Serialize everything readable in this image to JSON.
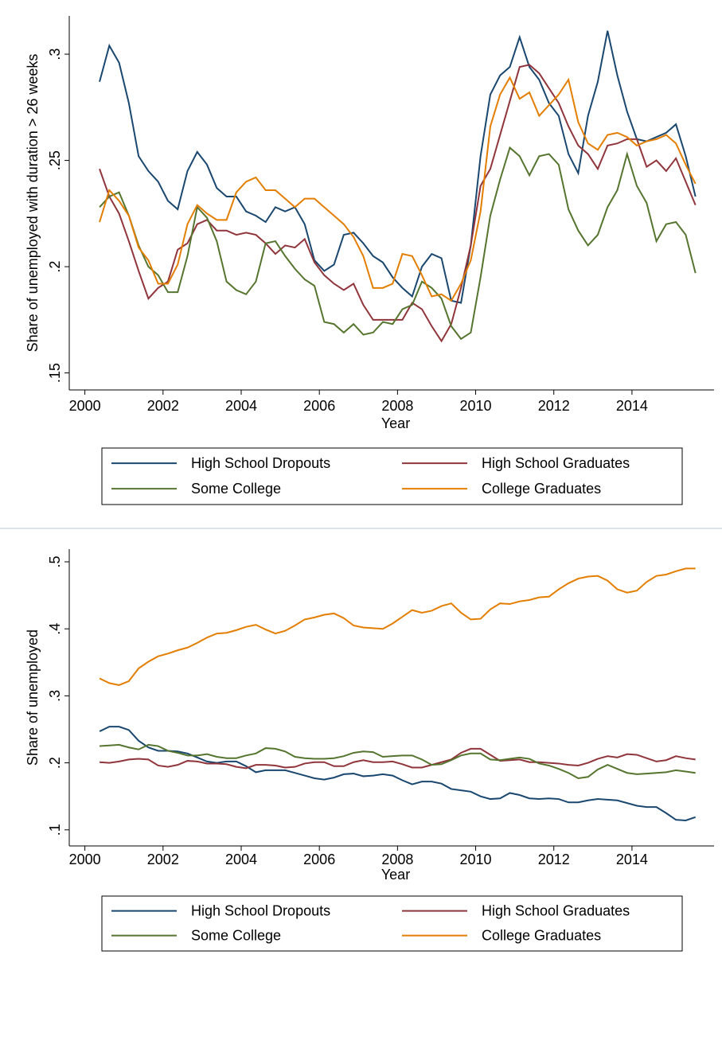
{
  "chart_data": [
    {
      "type": "line",
      "y_label": "Share of unemployed with duration > 26 weeks",
      "x_label": "Year",
      "xlim": [
        1999.6,
        2016.1
      ],
      "xticks": [
        2000,
        2002,
        2004,
        2006,
        2008,
        2010,
        2012,
        2014
      ],
      "ylim": [
        0.142,
        0.318
      ],
      "yticks": [
        {
          "value": 0.15,
          "label": ".15"
        },
        {
          "value": 0.2,
          "label": ".2"
        },
        {
          "value": 0.25,
          "label": ".25"
        },
        {
          "value": 0.3,
          "label": ".3"
        }
      ],
      "grid": false,
      "x": [
        2000.375,
        2000.625,
        2000.875,
        2001.125,
        2001.375,
        2001.625,
        2001.875,
        2002.125,
        2002.375,
        2002.625,
        2002.875,
        2003.125,
        2003.375,
        2003.625,
        2003.875,
        2004.125,
        2004.375,
        2004.625,
        2004.875,
        2005.125,
        2005.375,
        2005.625,
        2005.875,
        2006.125,
        2006.375,
        2006.625,
        2006.875,
        2007.125,
        2007.375,
        2007.625,
        2007.875,
        2008.125,
        2008.375,
        2008.625,
        2008.875,
        2009.125,
        2009.375,
        2009.625,
        2009.875,
        2010.125,
        2010.375,
        2010.625,
        2010.875,
        2011.125,
        2011.375,
        2011.625,
        2011.875,
        2012.125,
        2012.375,
        2012.625,
        2012.875,
        2013.125,
        2013.375,
        2013.625,
        2013.875,
        2014.125,
        2014.375,
        2014.625,
        2014.875,
        2015.125,
        2015.375,
        2015.625
      ],
      "series": [
        {
          "name": "High School Dropouts",
          "color": "#1a476f",
          "values": [
            0.287,
            0.304,
            0.296,
            0.277,
            0.252,
            0.245,
            0.24,
            0.231,
            0.227,
            0.245,
            0.254,
            0.248,
            0.237,
            0.233,
            0.233,
            0.226,
            0.224,
            0.221,
            0.228,
            0.226,
            0.228,
            0.22,
            0.203,
            0.198,
            0.201,
            0.215,
            0.216,
            0.211,
            0.205,
            0.202,
            0.195,
            0.19,
            0.186,
            0.2,
            0.206,
            0.204,
            0.184,
            0.183,
            0.21,
            0.252,
            0.281,
            0.29,
            0.294,
            0.308,
            0.294,
            0.288,
            0.277,
            0.271,
            0.253,
            0.244,
            0.271,
            0.287,
            0.311,
            0.29,
            0.273,
            0.26,
            0.259,
            0.261,
            0.263,
            0.267,
            0.252,
            0.233
          ]
        },
        {
          "name": "High School Graduates",
          "color": "#90353b",
          "values": [
            0.246,
            0.233,
            0.225,
            0.212,
            0.198,
            0.185,
            0.19,
            0.193,
            0.208,
            0.211,
            0.22,
            0.222,
            0.217,
            0.217,
            0.215,
            0.216,
            0.215,
            0.211,
            0.206,
            0.21,
            0.209,
            0.213,
            0.202,
            0.196,
            0.192,
            0.189,
            0.192,
            0.182,
            0.175,
            0.175,
            0.175,
            0.175,
            0.183,
            0.18,
            0.172,
            0.165,
            0.173,
            0.19,
            0.21,
            0.238,
            0.246,
            0.262,
            0.278,
            0.294,
            0.295,
            0.291,
            0.284,
            0.277,
            0.266,
            0.257,
            0.253,
            0.246,
            0.257,
            0.258,
            0.26,
            0.26,
            0.247,
            0.25,
            0.245,
            0.251,
            0.24,
            0.229
          ]
        },
        {
          "name": "Some College",
          "color": "#55752f",
          "values": [
            0.228,
            0.233,
            0.235,
            0.224,
            0.21,
            0.2,
            0.196,
            0.188,
            0.188,
            0.205,
            0.228,
            0.223,
            0.212,
            0.193,
            0.189,
            0.187,
            0.193,
            0.211,
            0.212,
            0.205,
            0.199,
            0.194,
            0.191,
            0.174,
            0.173,
            0.169,
            0.173,
            0.168,
            0.169,
            0.174,
            0.173,
            0.18,
            0.182,
            0.193,
            0.19,
            0.185,
            0.172,
            0.166,
            0.169,
            0.195,
            0.224,
            0.241,
            0.256,
            0.252,
            0.243,
            0.252,
            0.253,
            0.248,
            0.227,
            0.217,
            0.21,
            0.215,
            0.228,
            0.236,
            0.253,
            0.238,
            0.23,
            0.212,
            0.22,
            0.221,
            0.215,
            0.197
          ]
        },
        {
          "name": "College Graduates",
          "color": "#e37e00",
          "values": [
            0.221,
            0.236,
            0.231,
            0.224,
            0.209,
            0.203,
            0.192,
            0.192,
            0.201,
            0.22,
            0.229,
            0.225,
            0.222,
            0.222,
            0.235,
            0.24,
            0.242,
            0.236,
            0.236,
            0.232,
            0.228,
            0.232,
            0.232,
            0.228,
            0.224,
            0.22,
            0.214,
            0.205,
            0.19,
            0.19,
            0.192,
            0.206,
            0.205,
            0.196,
            0.186,
            0.187,
            0.184,
            0.192,
            0.203,
            0.226,
            0.266,
            0.281,
            0.289,
            0.279,
            0.282,
            0.271,
            0.276,
            0.281,
            0.288,
            0.268,
            0.258,
            0.255,
            0.262,
            0.263,
            0.261,
            0.257,
            0.259,
            0.26,
            0.262,
            0.258,
            0.248,
            0.239
          ]
        }
      ]
    },
    {
      "type": "line",
      "y_label": "Share of unemployed",
      "x_label": "Year",
      "xlim": [
        1999.6,
        2016.1
      ],
      "xticks": [
        2000,
        2002,
        2004,
        2006,
        2008,
        2010,
        2012,
        2014
      ],
      "ylim": [
        0.076,
        0.519
      ],
      "yticks": [
        {
          "value": 0.1,
          "label": ".1"
        },
        {
          "value": 0.2,
          "label": ".2"
        },
        {
          "value": 0.3,
          "label": ".3"
        },
        {
          "value": 0.4,
          "label": ".4"
        },
        {
          "value": 0.5,
          "label": ".5"
        }
      ],
      "grid": false,
      "x": [
        2000.375,
        2000.625,
        2000.875,
        2001.125,
        2001.375,
        2001.625,
        2001.875,
        2002.125,
        2002.375,
        2002.625,
        2002.875,
        2003.125,
        2003.375,
        2003.625,
        2003.875,
        2004.125,
        2004.375,
        2004.625,
        2004.875,
        2005.125,
        2005.375,
        2005.625,
        2005.875,
        2006.125,
        2006.375,
        2006.625,
        2006.875,
        2007.125,
        2007.375,
        2007.625,
        2007.875,
        2008.125,
        2008.375,
        2008.625,
        2008.875,
        2009.125,
        2009.375,
        2009.625,
        2009.875,
        2010.125,
        2010.375,
        2010.625,
        2010.875,
        2011.125,
        2011.375,
        2011.625,
        2011.875,
        2012.125,
        2012.375,
        2012.625,
        2012.875,
        2013.125,
        2013.375,
        2013.625,
        2013.875,
        2014.125,
        2014.375,
        2014.625,
        2014.875,
        2015.125,
        2015.375,
        2015.625
      ],
      "series": [
        {
          "name": "High School Dropouts",
          "color": "#1a476f",
          "values": [
            0.247,
            0.254,
            0.254,
            0.249,
            0.233,
            0.223,
            0.218,
            0.218,
            0.217,
            0.214,
            0.208,
            0.202,
            0.2,
            0.202,
            0.202,
            0.195,
            0.186,
            0.189,
            0.189,
            0.189,
            0.185,
            0.181,
            0.177,
            0.175,
            0.178,
            0.183,
            0.184,
            0.18,
            0.181,
            0.183,
            0.181,
            0.174,
            0.168,
            0.172,
            0.172,
            0.169,
            0.161,
            0.159,
            0.157,
            0.15,
            0.146,
            0.147,
            0.155,
            0.152,
            0.147,
            0.146,
            0.147,
            0.146,
            0.141,
            0.141,
            0.144,
            0.146,
            0.145,
            0.144,
            0.14,
            0.136,
            0.134,
            0.134,
            0.125,
            0.115,
            0.114,
            0.119
          ]
        },
        {
          "name": "High School Graduates",
          "color": "#90353b",
          "values": [
            0.201,
            0.2,
            0.202,
            0.205,
            0.206,
            0.205,
            0.196,
            0.194,
            0.197,
            0.203,
            0.202,
            0.199,
            0.199,
            0.198,
            0.194,
            0.192,
            0.197,
            0.197,
            0.196,
            0.193,
            0.194,
            0.199,
            0.201,
            0.201,
            0.195,
            0.195,
            0.201,
            0.204,
            0.201,
            0.201,
            0.202,
            0.198,
            0.193,
            0.193,
            0.197,
            0.201,
            0.205,
            0.215,
            0.221,
            0.221,
            0.212,
            0.203,
            0.204,
            0.205,
            0.201,
            0.201,
            0.2,
            0.199,
            0.197,
            0.196,
            0.2,
            0.206,
            0.21,
            0.208,
            0.213,
            0.212,
            0.207,
            0.202,
            0.204,
            0.21,
            0.207,
            0.205
          ]
        },
        {
          "name": "Some College",
          "color": "#55752f",
          "values": [
            0.225,
            0.226,
            0.227,
            0.223,
            0.22,
            0.227,
            0.225,
            0.218,
            0.215,
            0.211,
            0.211,
            0.213,
            0.209,
            0.207,
            0.207,
            0.211,
            0.214,
            0.222,
            0.221,
            0.217,
            0.209,
            0.207,
            0.206,
            0.206,
            0.207,
            0.21,
            0.215,
            0.217,
            0.216,
            0.209,
            0.21,
            0.211,
            0.211,
            0.205,
            0.197,
            0.198,
            0.204,
            0.211,
            0.214,
            0.214,
            0.205,
            0.204,
            0.206,
            0.208,
            0.206,
            0.199,
            0.196,
            0.191,
            0.185,
            0.177,
            0.179,
            0.19,
            0.197,
            0.191,
            0.185,
            0.183,
            0.184,
            0.185,
            0.186,
            0.189,
            0.187,
            0.185
          ]
        },
        {
          "name": "College Graduates",
          "color": "#e37e00",
          "values": [
            0.326,
            0.319,
            0.316,
            0.322,
            0.341,
            0.351,
            0.359,
            0.363,
            0.368,
            0.372,
            0.379,
            0.387,
            0.393,
            0.394,
            0.398,
            0.403,
            0.406,
            0.399,
            0.393,
            0.397,
            0.405,
            0.414,
            0.417,
            0.421,
            0.423,
            0.416,
            0.405,
            0.402,
            0.401,
            0.4,
            0.408,
            0.418,
            0.428,
            0.424,
            0.427,
            0.434,
            0.438,
            0.424,
            0.414,
            0.415,
            0.429,
            0.438,
            0.437,
            0.441,
            0.443,
            0.447,
            0.448,
            0.459,
            0.468,
            0.475,
            0.478,
            0.479,
            0.472,
            0.459,
            0.454,
            0.457,
            0.47,
            0.479,
            0.481,
            0.486,
            0.49,
            0.49
          ]
        }
      ]
    }
  ]
}
